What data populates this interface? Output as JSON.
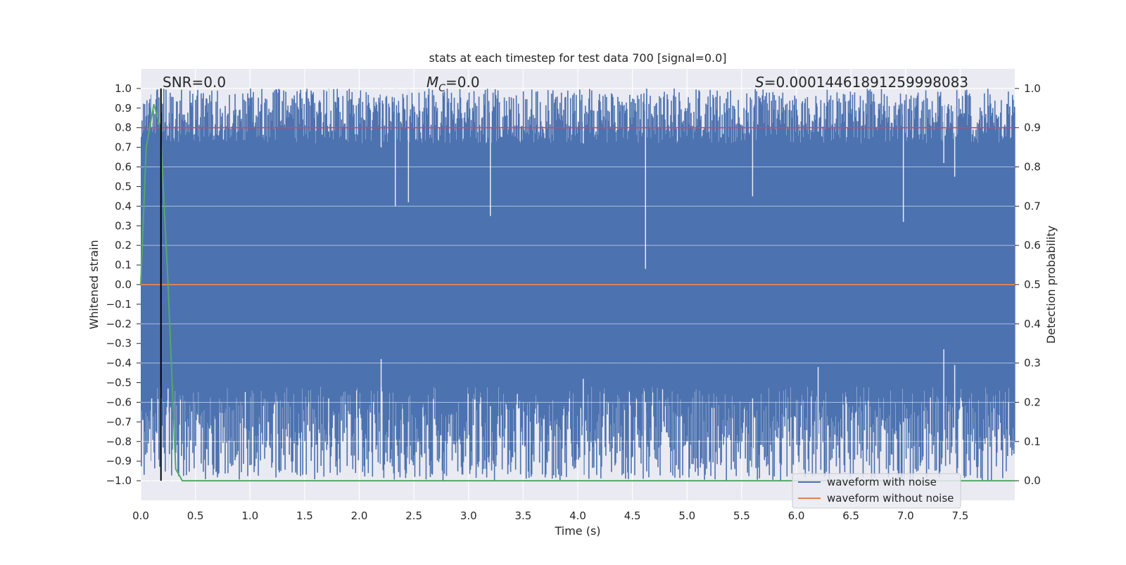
{
  "chart_data": {
    "type": "line",
    "title": "stats at each timestep for test data 700 [signal=0.0]",
    "xlabel": "Time (s)",
    "ylabel": "Whitened strain",
    "ylabel_right": "Detection probability",
    "xlim": [
      0.0,
      8.0
    ],
    "ylim": [
      -1.1,
      1.1
    ],
    "ylim_right": [
      -0.05,
      1.05
    ],
    "x_ticks": [
      "0.0",
      "0.5",
      "1.0",
      "1.5",
      "2.0",
      "2.5",
      "3.0",
      "3.5",
      "4.0",
      "4.5",
      "5.0",
      "5.5",
      "6.0",
      "6.5",
      "7.0",
      "7.5"
    ],
    "y_ticks": [
      "1.0",
      "0.9",
      "0.8",
      "0.7",
      "0.6",
      "0.5",
      "0.4",
      "0.3",
      "0.2",
      "0.1",
      "0.0",
      "−0.1",
      "−0.2",
      "−0.3",
      "−0.4",
      "−0.5",
      "−0.6",
      "−0.7",
      "−0.8",
      "−0.9",
      "−1.0"
    ],
    "y_ticks_right": [
      "1.0",
      "0.9",
      "0.8",
      "0.7",
      "0.6",
      "0.5",
      "0.4",
      "0.3",
      "0.2",
      "0.1",
      "0.0"
    ],
    "annotations": {
      "snr": "SNR=0.0",
      "mc_symbol": "M",
      "mc_sub": "C",
      "mc_value": "=0.0",
      "s_symbol": "S",
      "s_value": "=0.00014461891259998083"
    },
    "series": [
      {
        "name": "waveform with noise",
        "color": "#4c72b0",
        "style": "dense noise filling about −1.0 to 1.0"
      },
      {
        "name": "waveform without noise",
        "color": "#dd8452",
        "x": [
          0.0,
          8.0
        ],
        "y": [
          0.0,
          0.0
        ]
      }
    ],
    "detection_probability": {
      "color": "#55a868",
      "x": [
        0.0,
        0.05,
        0.12,
        0.18,
        0.25,
        0.32,
        0.38,
        8.0
      ],
      "y": [
        0.5,
        0.85,
        0.96,
        0.9,
        0.5,
        0.03,
        0.0,
        0.0
      ]
    },
    "threshold": {
      "color": "#c44e52",
      "value": 0.9
    },
    "marker_line": {
      "color": "#000000",
      "x": 0.185
    },
    "noise_dips": [
      {
        "x": 2.33,
        "top": 0.4,
        "bottom": -0.72
      },
      {
        "x": 2.45,
        "top": 0.42,
        "bottom": -0.7
      },
      {
        "x": 4.62,
        "top": 0.08,
        "bottom": -0.6
      },
      {
        "x": 6.98,
        "top": 0.32,
        "bottom": -0.7
      },
      {
        "x": 1.72,
        "top": 0.78,
        "bottom": -0.58
      },
      {
        "x": 3.2,
        "top": 0.35,
        "bottom": -0.62
      },
      {
        "x": 5.6,
        "top": 0.45,
        "bottom": -0.58
      },
      {
        "x": 2.2,
        "top": 0.7,
        "bottom": -0.38
      },
      {
        "x": 7.35,
        "top": 0.62,
        "bottom": -0.33
      },
      {
        "x": 7.45,
        "top": 0.55,
        "bottom": -0.41
      },
      {
        "x": 6.2,
        "top": 0.78,
        "bottom": -0.42
      },
      {
        "x": 4.05,
        "top": 0.72,
        "bottom": -0.48
      },
      {
        "x": 0.1,
        "top": 0.8,
        "bottom": -0.58
      },
      {
        "x": 0.25,
        "top": 0.76,
        "bottom": -0.53
      }
    ],
    "legend_position": "lower-right",
    "grid": true,
    "background": "#eaeaf2"
  }
}
